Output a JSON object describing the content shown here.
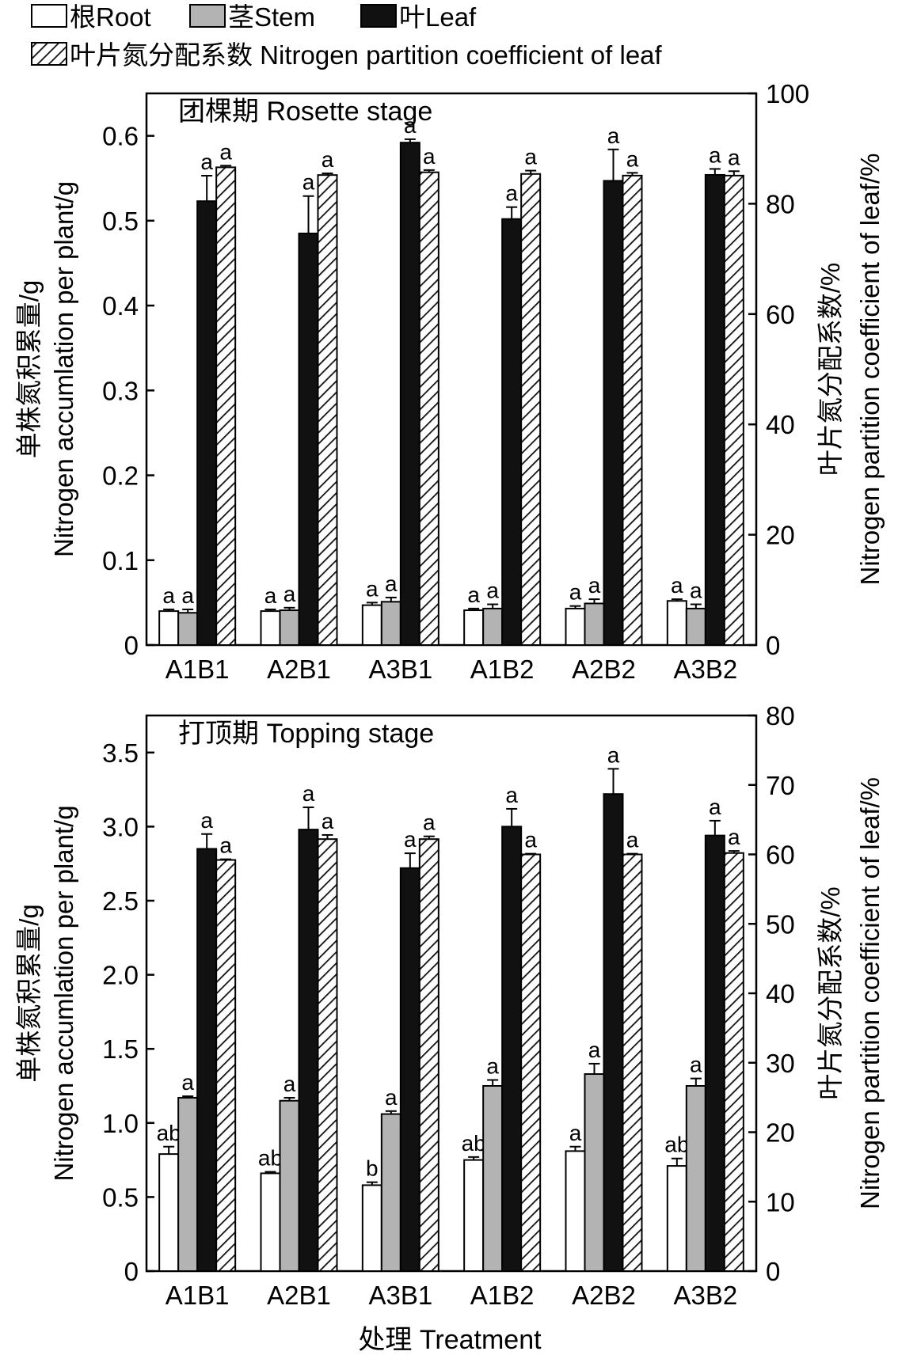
{
  "legend": {
    "root": "根Root",
    "stem": "茎Stem",
    "leaf": "叶Leaf",
    "coef": "叶片氮分配系数 Nitrogen partition coefficient of leaf"
  },
  "colors": {
    "root": "#ffffff",
    "stem": "#b3b3b3",
    "leaf": "#111111",
    "coef_hatch": "#111111",
    "axis": "#000000"
  },
  "xlabel": "处理 Treatment",
  "chart_data": [
    {
      "type": "bar",
      "title": "团棵期 Rosette stage",
      "categories": [
        "A1B1",
        "A2B1",
        "A3B1",
        "A1B2",
        "A2B2",
        "A3B2"
      ],
      "ylabel_left": "单株氮积累量/g  Nitrogen accumlation per plant/g",
      "ylabel_right": "叶片氮分配系数/%  Nitrogen partition coefficient of leaf/%",
      "ylim_left": [
        0,
        0.65
      ],
      "ylim_right": [
        0,
        100
      ],
      "yticks_left": [
        "0",
        "0.1",
        "0.2",
        "0.3",
        "0.4",
        "0.5",
        "0.6"
      ],
      "yticks_right": [
        "0",
        "20",
        "40",
        "60",
        "80",
        "100"
      ],
      "series": [
        {
          "name": "根Root",
          "axis": "left",
          "values": [
            0.04,
            0.04,
            0.047,
            0.041,
            0.043,
            0.052
          ],
          "errors": [
            0.002,
            0.002,
            0.003,
            0.002,
            0.003,
            0.002
          ],
          "labels": [
            "a",
            "a",
            "a",
            "a",
            "a",
            "a"
          ]
        },
        {
          "name": "茎Stem",
          "axis": "left",
          "values": [
            0.038,
            0.041,
            0.051,
            0.043,
            0.049,
            0.043
          ],
          "errors": [
            0.004,
            0.003,
            0.005,
            0.005,
            0.005,
            0.005
          ],
          "labels": [
            "a",
            "a",
            "a",
            "a",
            "a",
            "a"
          ]
        },
        {
          "name": "叶Leaf",
          "axis": "left",
          "values": [
            0.523,
            0.485,
            0.592,
            0.502,
            0.547,
            0.554
          ],
          "errors": [
            0.03,
            0.044,
            0.004,
            0.014,
            0.037,
            0.007
          ],
          "labels": [
            "a",
            "a",
            "a",
            "a",
            "a",
            "a"
          ]
        },
        {
          "name": "叶片氮分配系数 Nitrogen partition coefficient of leaf",
          "axis": "right",
          "values": [
            86.6,
            85.2,
            85.7,
            85.4,
            85.1,
            85.1
          ],
          "errors": [
            0.3,
            0.3,
            0.4,
            0.6,
            0.5,
            0.8
          ],
          "labels": [
            "a",
            "a",
            "a",
            "a",
            "a",
            "a"
          ]
        }
      ]
    },
    {
      "type": "bar",
      "title": "打顶期 Topping stage",
      "categories": [
        "A1B1",
        "A2B1",
        "A3B1",
        "A1B2",
        "A2B2",
        "A3B2"
      ],
      "ylabel_left": "单株氮积累量/g  Nitrogen accumlation per plant/g",
      "ylabel_right": "叶片氮分配系数/%  Nitrogen partition coefficient of leaf/%",
      "ylim_left": [
        0,
        3.75
      ],
      "ylim_right": [
        0,
        80
      ],
      "yticks_left": [
        "0",
        "0.5",
        "1.0",
        "1.5",
        "2.0",
        "2.5",
        "3.0",
        "3.5"
      ],
      "yticks_right": [
        "0",
        "10",
        "20",
        "30",
        "40",
        "50",
        "60",
        "70",
        "80"
      ],
      "series": [
        {
          "name": "根Root",
          "axis": "left",
          "values": [
            0.79,
            0.66,
            0.58,
            0.75,
            0.81,
            0.71
          ],
          "errors": [
            0.05,
            0.01,
            0.02,
            0.02,
            0.03,
            0.05
          ],
          "labels": [
            "ab",
            "ab",
            "b",
            "ab",
            "a",
            "ab"
          ]
        },
        {
          "name": "茎Stem",
          "axis": "left",
          "values": [
            1.17,
            1.15,
            1.06,
            1.25,
            1.33,
            1.25
          ],
          "errors": [
            0.01,
            0.02,
            0.02,
            0.04,
            0.07,
            0.05
          ],
          "labels": [
            "a",
            "a",
            "a",
            "a",
            "a",
            "a"
          ]
        },
        {
          "name": "叶Leaf",
          "axis": "left",
          "values": [
            2.85,
            2.98,
            2.72,
            3.0,
            3.22,
            2.94
          ],
          "errors": [
            0.1,
            0.15,
            0.1,
            0.12,
            0.17,
            0.1
          ],
          "labels": [
            "a",
            "a",
            "a",
            "a",
            "a",
            "a"
          ]
        },
        {
          "name": "叶片氮分配系数 Nitrogen partition coefficient of leaf",
          "axis": "right",
          "values": [
            59.2,
            62.2,
            62.2,
            60.0,
            60.0,
            60.2
          ],
          "errors": [
            0.1,
            0.6,
            0.4,
            0.1,
            0.1,
            0.3
          ],
          "labels": [
            "a",
            "a",
            "a",
            "a",
            "a",
            "a"
          ]
        }
      ]
    }
  ]
}
